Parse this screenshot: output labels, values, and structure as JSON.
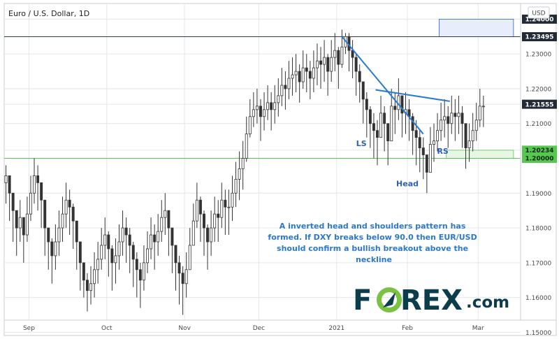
{
  "chart_data": {
    "type": "candlestick",
    "title": "Euro / U.S. Dollar, 1D",
    "currency": "USD",
    "ylim": [
      1.1535,
      1.2445
    ],
    "y_ticks": [
      "1.24000",
      "1.23495",
      "1.23000",
      "1.22000",
      "1.21555",
      "1.21000",
      "1.20234",
      "1.20000",
      "1.19000",
      "1.18000",
      "1.17000",
      "1.16000",
      "1.15000"
    ],
    "hidden_ticks": [
      "1.24000",
      "1.23495",
      "1.21555",
      "1.20234",
      "1.20000"
    ],
    "x_labels": [
      {
        "label": "Sep",
        "bar": 7
      },
      {
        "label": "Oct",
        "bar": 29
      },
      {
        "label": "Nov",
        "bar": 51
      },
      {
        "label": "Dec",
        "bar": 72
      },
      {
        "label": "2021",
        "bar": 94
      },
      {
        "label": "Feb",
        "bar": 114
      },
      {
        "label": "Mar",
        "bar": 134
      }
    ],
    "x_range": [
      0,
      146
    ],
    "closes": [
      1.195,
      1.19,
      1.185,
      1.18,
      1.183,
      1.178,
      1.184,
      1.19,
      1.195,
      1.193,
      1.188,
      1.18,
      1.176,
      1.172,
      1.176,
      1.18,
      1.184,
      1.188,
      1.186,
      1.182,
      1.176,
      1.17,
      1.165,
      1.162,
      1.164,
      1.168,
      1.171,
      1.175,
      1.178,
      1.174,
      1.17,
      1.172,
      1.176,
      1.18,
      1.178,
      1.175,
      1.171,
      1.168,
      1.165,
      1.17,
      1.174,
      1.178,
      1.176,
      1.179,
      1.183,
      1.185,
      1.18,
      1.175,
      1.17,
      1.167,
      1.164,
      1.168,
      1.175,
      1.182,
      1.188,
      1.184,
      1.18,
      1.176,
      1.18,
      1.184,
      1.183,
      1.188,
      1.186,
      1.186,
      1.19,
      1.194,
      1.197,
      1.2,
      1.207,
      1.212,
      1.214,
      1.215,
      1.212,
      1.214,
      1.216,
      1.214,
      1.216,
      1.218,
      1.221,
      1.22,
      1.223,
      1.224,
      1.225,
      1.222,
      1.226,
      1.225,
      1.223,
      1.226,
      1.228,
      1.227,
      1.229,
      1.225,
      1.229,
      1.231,
      1.227,
      1.232,
      1.235,
      1.231,
      1.229,
      1.225,
      1.222,
      1.217,
      1.214,
      1.21,
      1.208,
      1.206,
      1.213,
      1.21,
      1.205,
      1.215,
      1.214,
      1.218,
      1.213,
      1.214,
      1.212,
      1.208,
      1.206,
      1.203,
      1.201,
      1.196,
      1.204,
      1.205,
      1.208,
      1.211,
      1.212,
      1.21,
      1.213,
      1.212,
      1.213,
      1.21,
      1.203,
      1.205,
      1.208,
      1.211,
      1.215,
      1.215
    ],
    "lows": [
      1.187,
      1.182,
      1.176,
      1.172,
      1.176,
      1.17,
      1.176,
      1.182,
      1.187,
      1.185,
      1.18,
      1.172,
      1.168,
      1.164,
      1.168,
      1.172,
      1.176,
      1.18,
      1.178,
      1.174,
      1.168,
      1.162,
      1.16,
      1.156,
      1.158,
      1.16,
      1.164,
      1.168,
      1.171,
      1.166,
      1.162,
      1.164,
      1.168,
      1.172,
      1.17,
      1.167,
      1.163,
      1.16,
      1.157,
      1.162,
      1.167,
      1.171,
      1.168,
      1.172,
      1.176,
      1.178,
      1.172,
      1.167,
      1.162,
      1.158,
      1.155,
      1.16,
      1.168,
      1.175,
      1.18,
      1.176,
      1.172,
      1.168,
      1.172,
      1.176,
      1.176,
      1.18,
      1.178,
      1.178,
      1.182,
      1.186,
      1.188,
      1.191,
      1.199,
      1.206,
      1.209,
      1.21,
      1.205,
      1.208,
      1.211,
      1.208,
      1.21,
      1.212,
      1.215,
      1.214,
      1.217,
      1.218,
      1.219,
      1.216,
      1.22,
      1.219,
      1.217,
      1.219,
      1.221,
      1.22,
      1.222,
      1.218,
      1.222,
      1.225,
      1.22,
      1.226,
      1.23,
      1.225,
      1.223,
      1.218,
      1.216,
      1.21,
      1.206,
      1.203,
      1.2,
      1.198,
      1.206,
      1.202,
      1.198,
      1.208,
      1.207,
      1.211,
      1.206,
      1.207,
      1.205,
      1.201,
      1.198,
      1.196,
      1.194,
      1.19,
      1.197,
      1.199,
      1.202,
      1.205,
      1.206,
      1.203,
      1.207,
      1.205,
      1.207,
      1.203,
      1.197,
      1.199,
      1.202,
      1.205,
      1.209,
      1.209
    ],
    "highs": [
      1.198,
      1.193,
      1.188,
      1.185,
      1.188,
      1.183,
      1.189,
      1.195,
      1.2,
      1.198,
      1.193,
      1.185,
      1.18,
      1.177,
      1.181,
      1.185,
      1.189,
      1.193,
      1.191,
      1.187,
      1.181,
      1.175,
      1.17,
      1.167,
      1.169,
      1.173,
      1.176,
      1.18,
      1.183,
      1.179,
      1.175,
      1.177,
      1.181,
      1.185,
      1.183,
      1.18,
      1.176,
      1.173,
      1.17,
      1.175,
      1.179,
      1.183,
      1.181,
      1.184,
      1.188,
      1.19,
      1.185,
      1.18,
      1.175,
      1.172,
      1.169,
      1.173,
      1.18,
      1.187,
      1.193,
      1.189,
      1.185,
      1.181,
      1.185,
      1.189,
      1.188,
      1.193,
      1.191,
      1.191,
      1.195,
      1.199,
      1.202,
      1.205,
      1.212,
      1.217,
      1.219,
      1.22,
      1.217,
      1.219,
      1.221,
      1.219,
      1.221,
      1.223,
      1.226,
      1.225,
      1.228,
      1.229,
      1.23,
      1.227,
      1.231,
      1.23,
      1.228,
      1.231,
      1.233,
      1.232,
      1.234,
      1.23,
      1.234,
      1.236,
      1.232,
      1.237,
      1.236,
      1.236,
      1.234,
      1.23,
      1.227,
      1.222,
      1.219,
      1.215,
      1.213,
      1.211,
      1.218,
      1.215,
      1.21,
      1.22,
      1.219,
      1.223,
      1.218,
      1.219,
      1.217,
      1.213,
      1.211,
      1.208,
      1.206,
      1.201,
      1.209,
      1.21,
      1.213,
      1.216,
      1.217,
      1.215,
      1.218,
      1.217,
      1.218,
      1.215,
      1.208,
      1.21,
      1.213,
      1.216,
      1.22,
      1.218
    ],
    "price_labels": [
      {
        "label": "1.24000",
        "value": 1.24,
        "style": "dark"
      },
      {
        "label": "1.23495",
        "value": 1.23495,
        "style": "dark"
      },
      {
        "label": "1.21555",
        "value": 1.21555,
        "style": "dark"
      },
      {
        "label": "1.20234",
        "value": 1.20234,
        "style": "green"
      },
      {
        "label": "1.20000",
        "value": 1.2,
        "style": "green"
      }
    ],
    "levels": [
      {
        "value": 1.23495,
        "color": "#2e3b4e"
      },
      {
        "value": 1.2,
        "color": "#56c850"
      }
    ],
    "zones": [
      {
        "x0": 125,
        "x1": 144,
        "y0": 1.20234,
        "y1": 1.2,
        "fill": "#e6f7e4",
        "stroke": "#56c850"
      },
      {
        "x0": 123,
        "x1": 144,
        "y0": 1.24,
        "y1": 1.23495,
        "fill": "#e8edfb",
        "stroke": "#2a5fd0"
      }
    ],
    "trendlines": [
      {
        "x0": 95.5,
        "y0": 1.23495,
        "x1": 118.5,
        "y1": 1.207
      },
      {
        "x0": 105,
        "y0": 1.2197,
        "x1": 126,
        "y1": 1.2164
      }
    ],
    "annotations": [
      {
        "text": "LS",
        "bar": 101,
        "value": 1.2035
      },
      {
        "text": "Head",
        "bar": 114,
        "value": 1.192
      },
      {
        "text": "RS",
        "bar": 124,
        "value": 1.2013
      }
    ],
    "note_lines": [
      "A inverted head and shoulders pattern has",
      "formed. If DXY breaks below 90.0 then EUR/USD",
      "should confirm a bullish breakout above the",
      "neckline"
    ],
    "logo": {
      "part1": "F",
      "part2": "REX",
      "suffix": ".com"
    }
  },
  "colors": {
    "up": "#ffffff",
    "down": "#333333",
    "wick": "#333333",
    "grid": "#e3e6ea",
    "border": "#c9cdd3",
    "note": "#2a78cf",
    "trend": "#2a7ad0",
    "logo_dark": "#0c3d4c",
    "logo_green": "#7bc242"
  }
}
